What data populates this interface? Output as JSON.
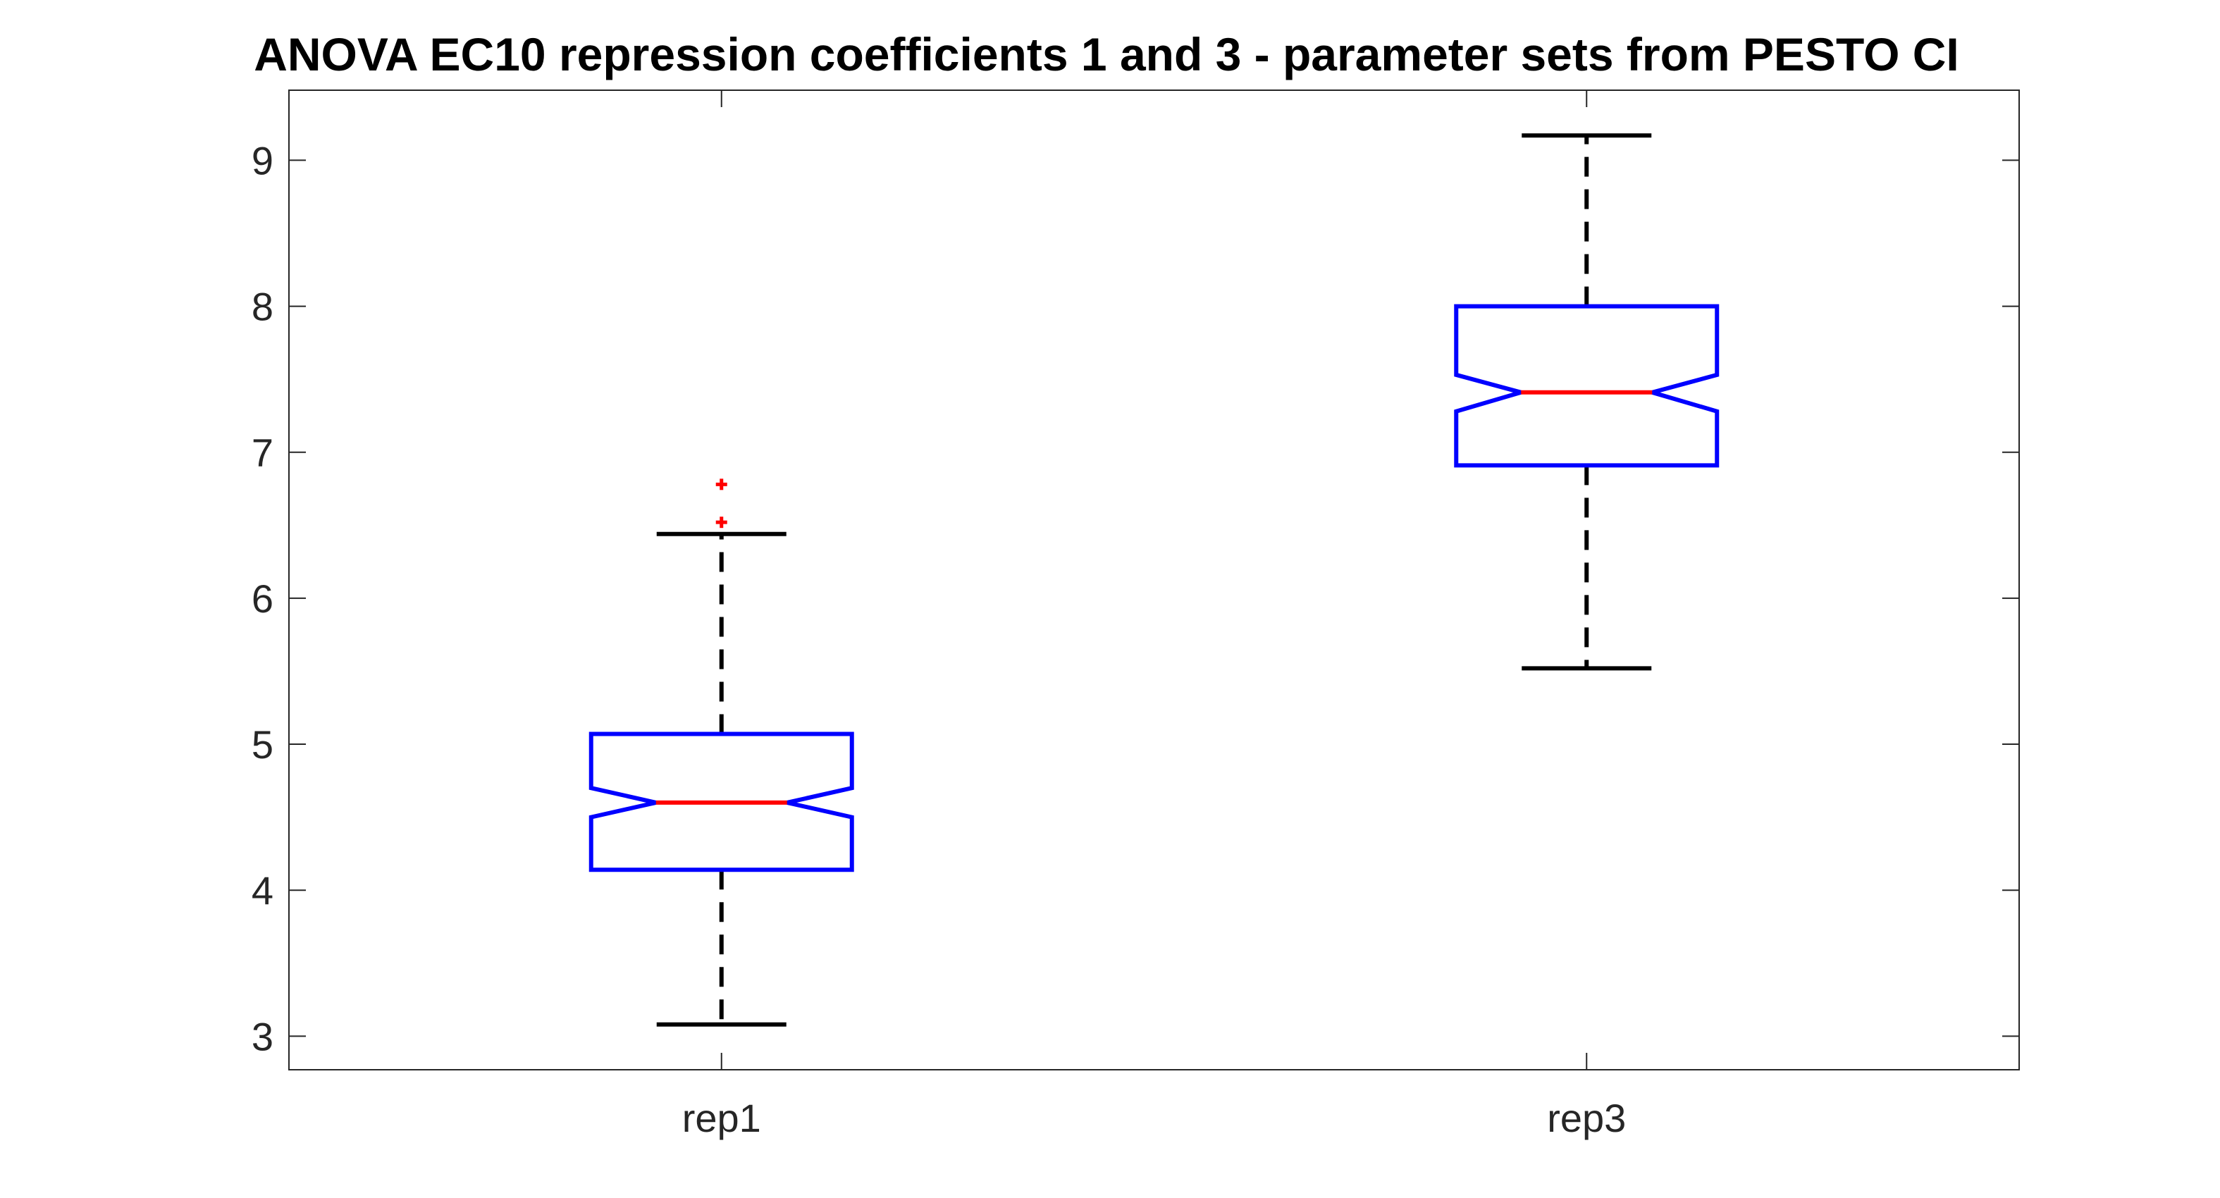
{
  "chart_data": {
    "type": "box",
    "title": "ANOVA EC10 repression coefficients 1 and 3 - parameter sets from PESTO CI",
    "xlabel": "",
    "ylabel": "",
    "categories": [
      "rep1",
      "rep3"
    ],
    "ylim": [
      2.77,
      9.48
    ],
    "yticks": [
      3,
      4,
      5,
      6,
      7,
      8,
      9
    ],
    "grid": false,
    "notched": true,
    "boxes": [
      {
        "label": "rep1",
        "whisker_low": 3.08,
        "q1": 4.14,
        "notch_low": 4.5,
        "median": 4.6,
        "notch_high": 4.7,
        "q3": 5.07,
        "whisker_high": 6.44,
        "outliers": [
          6.52,
          6.78
        ]
      },
      {
        "label": "rep3",
        "whisker_low": 5.52,
        "q1": 6.91,
        "notch_low": 7.28,
        "median": 7.41,
        "notch_high": 7.53,
        "q3": 8.0,
        "whisker_high": 9.17,
        "outliers": []
      }
    ],
    "colors": {
      "box": "#0000ff",
      "median": "#ff0000",
      "whisker": "#000000",
      "outlier": "#ff0000",
      "axes": "#262626"
    }
  }
}
